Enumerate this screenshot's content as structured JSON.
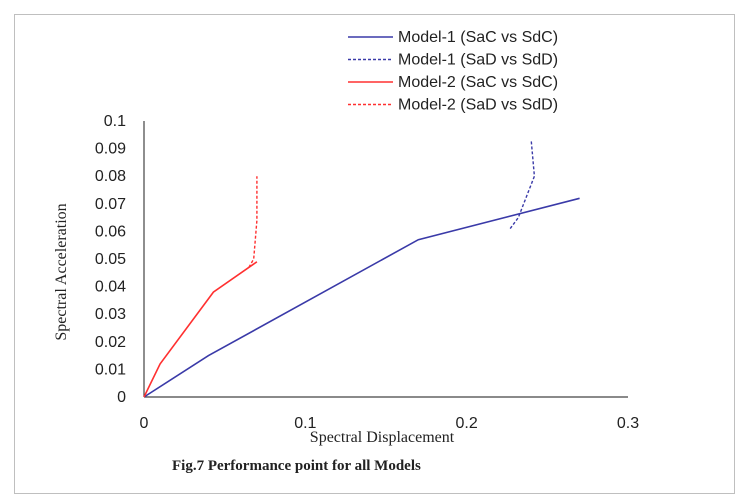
{
  "chart_data": {
    "type": "line",
    "title": "",
    "caption": "Fig.7 Performance point for all Models",
    "xlabel": "Spectral Displacement",
    "ylabel": "Spectral Acceleration",
    "xlim": [
      0,
      0.3
    ],
    "ylim": [
      0,
      0.1
    ],
    "x_ticks": [
      "0",
      "0.1",
      "0.2",
      "0.3"
    ],
    "y_ticks": [
      "0",
      "0.01",
      "0.02",
      "0.03",
      "0.04",
      "0.05",
      "0.06",
      "0.07",
      "0.08",
      "0.09",
      "0.1"
    ],
    "grid": false,
    "legend_position": "top-right",
    "series": [
      {
        "name": "Model-1 (SaC vs SdC)",
        "color": "#3a3aa8",
        "dash": "solid",
        "points": [
          [
            0,
            0
          ],
          [
            0.04,
            0.015
          ],
          [
            0.17,
            0.057
          ],
          [
            0.27,
            0.072
          ]
        ]
      },
      {
        "name": "Model-1 (SaD vs SdD)",
        "color": "#3a3aa8",
        "dash": "dashed",
        "points": [
          [
            0.227,
            0.061
          ],
          [
            0.232,
            0.065
          ],
          [
            0.242,
            0.08
          ],
          [
            0.24,
            0.093
          ]
        ]
      },
      {
        "name": "Model-2 (SaC vs SdC)",
        "color": "#ff3030",
        "dash": "solid",
        "points": [
          [
            0,
            0
          ],
          [
            0.01,
            0.012
          ],
          [
            0.043,
            0.038
          ],
          [
            0.07,
            0.049
          ]
        ]
      },
      {
        "name": "Model-2 (SaD vs SdD)",
        "color": "#ff3030",
        "dash": "dashed",
        "points": [
          [
            0.065,
            0.047
          ],
          [
            0.068,
            0.05
          ],
          [
            0.07,
            0.064
          ],
          [
            0.07,
            0.08
          ]
        ]
      }
    ]
  }
}
